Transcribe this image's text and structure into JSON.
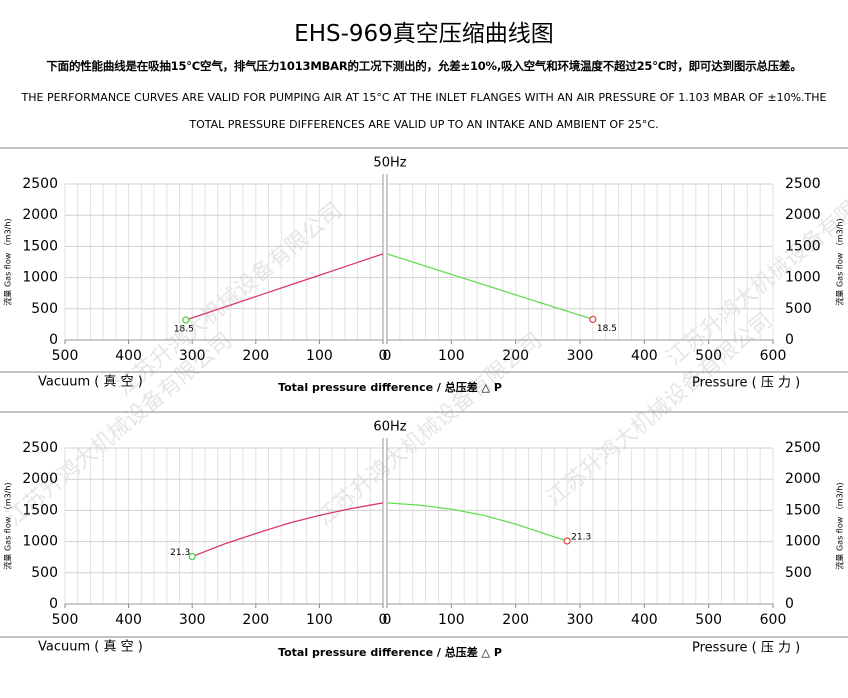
{
  "title": "EHS-969真空压缩曲线图",
  "subtitle_cn": "下面的性能曲线是在吸抽15°C空气，排气压力1013MBAR的工况下测出的，允差±10%,吸入空气和环境温度不超过25°C时，即可达到图示总压差。",
  "subtitle_en": "THE PERFORMANCE CURVES ARE VALID FOR PUMPING AIR AT 15°C AT THE INLET FLANGES WITH AN AIR PRESSURE OF 1.103 MBAR OF ±10%.THE TOTAL PRESSURE DIFFERENCES ARE VALID UP TO AN INTAKE AND AMBIENT OF 25°C.",
  "watermark": "江苏升鸿大机械设备有限公司",
  "chart_data": [
    {
      "type": "line",
      "title": "50Hz",
      "ylabel": "流量 Gas flow （m3/h)",
      "xlabel": "Total pressure difference / 总压差 △ P",
      "left_label": "Vacuum ( 真 空 )",
      "right_label": "Pressure ( 压 力 )",
      "grid": true,
      "minor_grid_step": 20,
      "panels": [
        {
          "xlim": [
            500,
            0
          ],
          "xticks": [
            500,
            400,
            300,
            200,
            100,
            0
          ],
          "ylim": [
            0,
            2500
          ],
          "yticks": [
            0,
            500,
            1000,
            1500,
            2000,
            2500
          ],
          "series": [
            {
              "color": "#d9386e",
              "marker_color": "#44cc44",
              "x": [
                310,
                250,
                200,
                150,
                100,
                50,
                0
              ],
              "values": [
                320,
                525,
                696,
                867,
                1038,
                1209,
                1380
              ]
            }
          ],
          "annotation": {
            "text": "18.5",
            "x": 310,
            "y": 320
          }
        },
        {
          "xlim": [
            0,
            600
          ],
          "xticks": [
            0,
            100,
            200,
            300,
            400,
            500,
            600
          ],
          "ylim": [
            0,
            2500
          ],
          "yticks": [
            0,
            500,
            1000,
            1500,
            2000,
            2500
          ],
          "series": [
            {
              "color": "#66dd55",
              "marker_color": "#e04040",
              "x": [
                0,
                100,
                200,
                320
              ],
              "values": [
                1380,
                1052,
                724,
                330
              ]
            }
          ],
          "annotation": {
            "text": "18.5",
            "x": 320,
            "y": 330
          }
        }
      ]
    },
    {
      "type": "line",
      "title": "60Hz",
      "ylabel": "流量 Gas flow （m3/h)",
      "xlabel": "Total pressure difference / 总压差 △ P",
      "left_label": "Vacuum ( 真 空 )",
      "right_label": "Pressure ( 压 力 )",
      "grid": true,
      "minor_grid_step": 20,
      "panels": [
        {
          "xlim": [
            500,
            0
          ],
          "xticks": [
            500,
            400,
            300,
            200,
            100,
            0
          ],
          "ylim": [
            0,
            2500
          ],
          "yticks": [
            0,
            500,
            1000,
            1500,
            2000,
            2500
          ],
          "series": [
            {
              "color": "#d9386e",
              "marker_color": "#44cc44",
              "x": [
                300,
                250,
                200,
                150,
                100,
                50,
                0
              ],
              "values": [
                760,
                960,
                1130,
                1290,
                1420,
                1530,
                1620
              ]
            }
          ],
          "annotation": {
            "text": "21.3",
            "x": 300,
            "y": 760
          }
        },
        {
          "xlim": [
            0,
            600
          ],
          "xticks": [
            0,
            100,
            200,
            300,
            400,
            500,
            600
          ],
          "ylim": [
            0,
            2500
          ],
          "yticks": [
            0,
            500,
            1000,
            1500,
            2000,
            2500
          ],
          "series": [
            {
              "color": "#66dd55",
              "marker_color": "#e04040",
              "x": [
                0,
                50,
                100,
                150,
                200,
                250,
                280
              ],
              "values": [
                1620,
                1585,
                1520,
                1420,
                1280,
                1110,
                1010
              ]
            }
          ],
          "annotation": {
            "text": "21.3",
            "x": 280,
            "y": 1010
          }
        }
      ]
    }
  ]
}
